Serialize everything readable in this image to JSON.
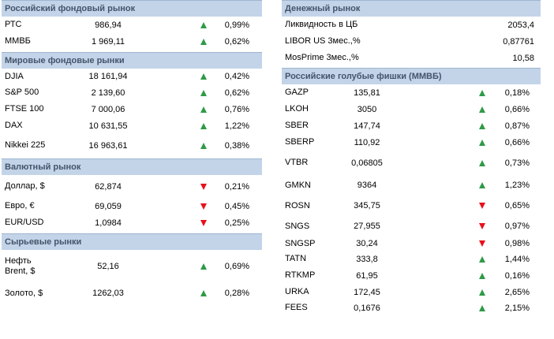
{
  "colors": {
    "header_bg": "#c3d4e9",
    "header_text": "#44546a",
    "up_arrow": "#2e9a47",
    "down_arrow": "#e8101a"
  },
  "sections": {
    "russian_stock": {
      "title": "Российский фондовый рынок",
      "rows": [
        {
          "name": "РТС",
          "value": "986,94",
          "direction": "up",
          "change": "0,99%"
        },
        {
          "name": "ММВБ",
          "value": "1 969,11",
          "direction": "up",
          "change": "0,62%"
        }
      ]
    },
    "world_stock": {
      "title": "Мировые фондовые рынки",
      "rows": [
        {
          "name": "DJIA",
          "value": "18 161,94",
          "direction": "up",
          "change": "0,42%"
        },
        {
          "name": "S&P 500",
          "value": "2 139,60",
          "direction": "up",
          "change": "0,62%"
        },
        {
          "name": "FTSE 100",
          "value": "7 000,06",
          "direction": "up",
          "change": "0,76%"
        },
        {
          "name": "DAX",
          "value": "10 631,55",
          "direction": "up",
          "change": "1,22%"
        },
        {
          "name": "Nikkei 225",
          "value": "16 963,61",
          "direction": "up",
          "change": "0,38%"
        }
      ]
    },
    "currency": {
      "title": "Валютный рынок",
      "rows": [
        {
          "name": "Доллар, $",
          "value": "62,874",
          "direction": "down",
          "change": "0,21%"
        },
        {
          "name": "Евро, €",
          "value": "69,059",
          "direction": "down",
          "change": "0,45%"
        },
        {
          "name": "EUR/USD",
          "value": "1,0984",
          "direction": "down",
          "change": "0,25%"
        }
      ]
    },
    "commodities": {
      "title": "Сырьевые рынки",
      "rows": [
        {
          "name": "Нефть Brent, $",
          "value": "52,16",
          "direction": "up",
          "change": "0,69%"
        },
        {
          "name": "Золото, $",
          "value": "1262,03",
          "direction": "up",
          "change": "0,28%"
        }
      ]
    },
    "money": {
      "title": "Денежный рынок",
      "rows": [
        {
          "name": "Ликвидность в ЦБ",
          "value": "2053,4"
        },
        {
          "name": "LIBOR US 3мес.,%",
          "value": "0,87761"
        },
        {
          "name": "MosPrime 3мес.,%",
          "value": "10,58"
        }
      ]
    },
    "blue_chips": {
      "title": "Российские голубые фишки (ММВБ)",
      "rows": [
        {
          "name": "GAZP",
          "value": "135,81",
          "direction": "up",
          "change": "0,18%"
        },
        {
          "name": "LKOH",
          "value": "3050",
          "direction": "up",
          "change": "0,66%"
        },
        {
          "name": "SBER",
          "value": "147,74",
          "direction": "up",
          "change": "0,87%"
        },
        {
          "name": "SBERP",
          "value": "110,92",
          "direction": "up",
          "change": "0,66%"
        },
        {
          "name": "VTBR",
          "value": "0,06805",
          "direction": "up",
          "change": "0,73%"
        },
        {
          "name": "GMKN",
          "value": "9364",
          "direction": "up",
          "change": "1,23%"
        },
        {
          "name": "ROSN",
          "value": "345,75",
          "direction": "down",
          "change": "0,65%"
        },
        {
          "name": "SNGS",
          "value": "27,955",
          "direction": "down",
          "change": "0,97%"
        },
        {
          "name": "SNGSP",
          "value": "30,24",
          "direction": "down",
          "change": "0,98%"
        },
        {
          "name": "TATN",
          "value": "333,8",
          "direction": "up",
          "change": "1,44%"
        },
        {
          "name": "RTKMP",
          "value": "61,95",
          "direction": "up",
          "change": "0,16%"
        },
        {
          "name": "URKA",
          "value": "172,45",
          "direction": "up",
          "change": "2,65%"
        },
        {
          "name": "FEES",
          "value": "0,1676",
          "direction": "up",
          "change": "2,15%"
        }
      ]
    }
  }
}
